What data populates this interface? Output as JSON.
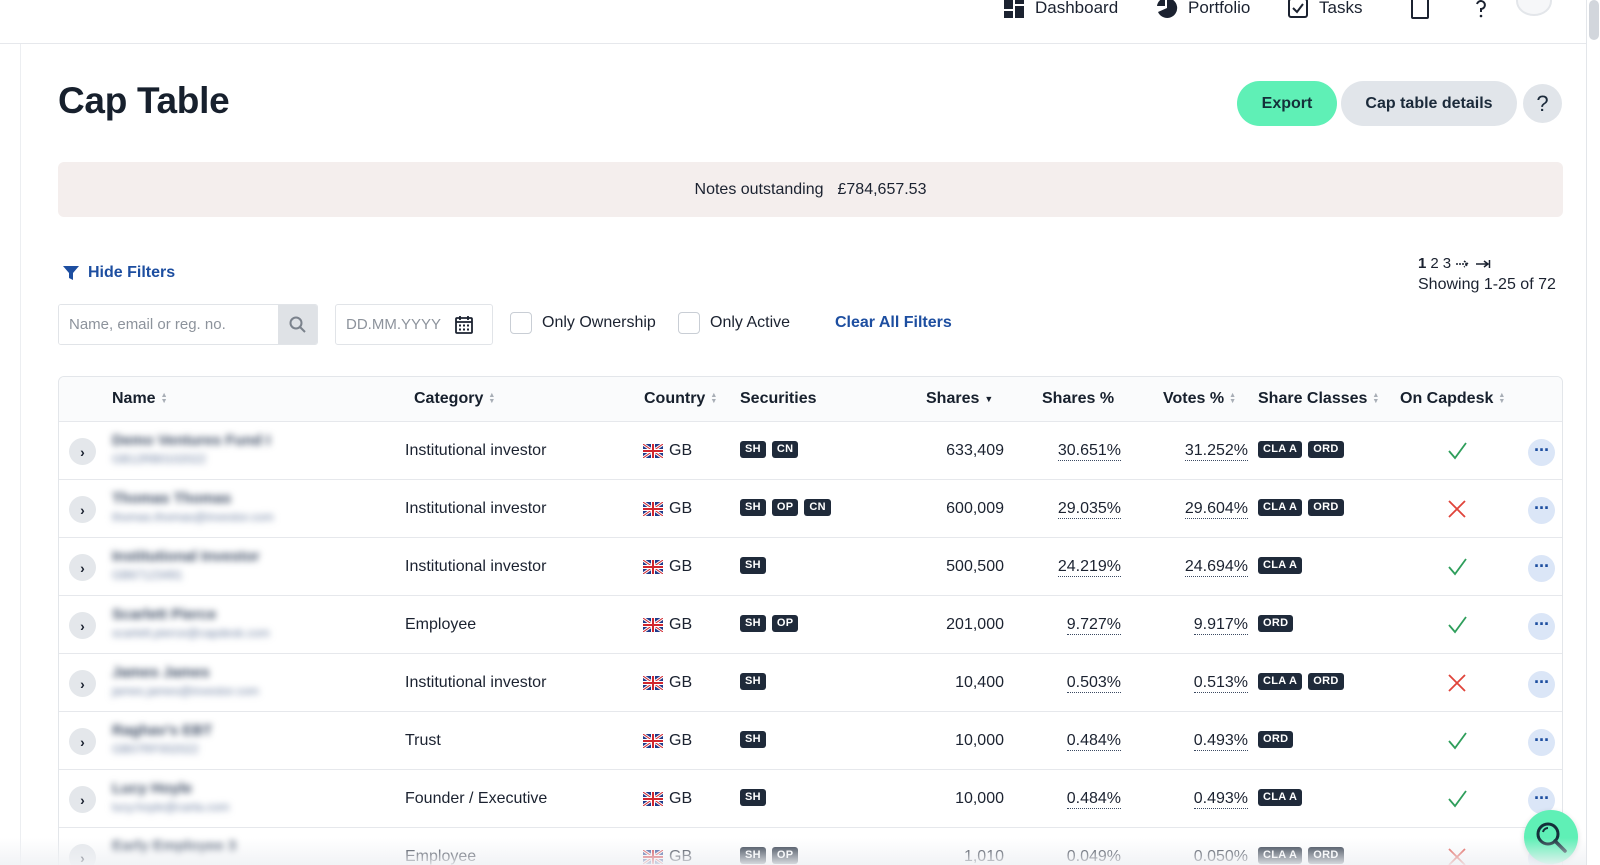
{
  "nav": {
    "dashboard": "Dashboard",
    "portfolio": "Portfolio",
    "tasks": "Tasks"
  },
  "page": {
    "title": "Cap Table"
  },
  "actions": {
    "export": "Export",
    "details": "Cap table details",
    "help": "?"
  },
  "notes": {
    "label": "Notes outstanding",
    "value": "£784,657.53"
  },
  "filters": {
    "toggle_label": "Hide Filters",
    "search_placeholder": "Name, email or reg. no.",
    "date_placeholder": "DD.MM.YYYY",
    "only_ownership": "Only Ownership",
    "only_active": "Only Active",
    "clear_all": "Clear All Filters"
  },
  "pagination": {
    "pages": [
      "1",
      "2",
      "3"
    ],
    "current": "1",
    "showing": "Showing 1-25 of 72"
  },
  "table": {
    "headers": {
      "name": "Name",
      "category": "Category",
      "country": "Country",
      "securities": "Securities",
      "shares": "Shares",
      "shares_pct": "Shares %",
      "votes_pct": "Votes %",
      "share_classes": "Share Classes",
      "on_capdesk": "On Capdesk"
    },
    "rows": [
      {
        "name": "Demo Ventures Fund I",
        "sub": "GB12RB0102022",
        "category": "Institutional investor",
        "country": "GB",
        "securities": [
          "SH",
          "CN"
        ],
        "shares": "633,409",
        "shares_pct": "30.651%",
        "votes_pct": "31.252%",
        "classes": [
          "CLA A",
          "ORD"
        ],
        "on_capdesk": true
      },
      {
        "name": "Thomas Thomas",
        "sub": "thomas.thomas@investor.com",
        "category": "Institutional investor",
        "country": "GB",
        "securities": [
          "SH",
          "OP",
          "CN"
        ],
        "shares": "600,009",
        "shares_pct": "29.035%",
        "votes_pct": "29.604%",
        "classes": [
          "CLA A",
          "ORD"
        ],
        "on_capdesk": false
      },
      {
        "name": "Institutional Investor",
        "sub": "GB67123491",
        "category": "Institutional investor",
        "country": "GB",
        "securities": [
          "SH"
        ],
        "shares": "500,500",
        "shares_pct": "24.219%",
        "votes_pct": "24.694%",
        "classes": [
          "CLA A"
        ],
        "on_capdesk": true
      },
      {
        "name": "Scarlett Pierce",
        "sub": "scarlett.pierce@capdesk.com",
        "category": "Employee",
        "country": "GB",
        "securities": [
          "SH",
          "OP"
        ],
        "shares": "201,000",
        "shares_pct": "9.727%",
        "votes_pct": "9.917%",
        "classes": [
          "ORD"
        ],
        "on_capdesk": true
      },
      {
        "name": "James James",
        "sub": "james.james@investor.com",
        "category": "Institutional investor",
        "country": "GB",
        "securities": [
          "SH"
        ],
        "shares": "10,400",
        "shares_pct": "0.503%",
        "votes_pct": "0.513%",
        "classes": [
          "CLA A",
          "ORD"
        ],
        "on_capdesk": false
      },
      {
        "name": "Raghav's EBT",
        "sub": "GB07RF002022",
        "category": "Trust",
        "country": "GB",
        "securities": [
          "SH"
        ],
        "shares": "10,000",
        "shares_pct": "0.484%",
        "votes_pct": "0.493%",
        "classes": [
          "ORD"
        ],
        "on_capdesk": true
      },
      {
        "name": "Lucy Hoyle",
        "sub": "lucy.hoyle@carta.com",
        "category": "Founder / Executive",
        "country": "GB",
        "securities": [
          "SH"
        ],
        "shares": "10,000",
        "shares_pct": "0.484%",
        "votes_pct": "0.493%",
        "classes": [
          "CLA A"
        ],
        "on_capdesk": true
      },
      {
        "name": "Early Employee 3",
        "sub": "",
        "category": "Employee",
        "country": "GB",
        "securities": [
          "SH",
          "OP"
        ],
        "shares": "1,010",
        "shares_pct": "0.049%",
        "votes_pct": "0.050%",
        "classes": [
          "CLA A",
          "ORD"
        ],
        "on_capdesk": false
      }
    ]
  },
  "colors": {
    "accent_green": "#5ff0b6",
    "link_blue": "#1d4ea0",
    "check_green": "#2e9e5b",
    "cross_red": "#e0443a",
    "notes_bg": "#f4eeed"
  }
}
